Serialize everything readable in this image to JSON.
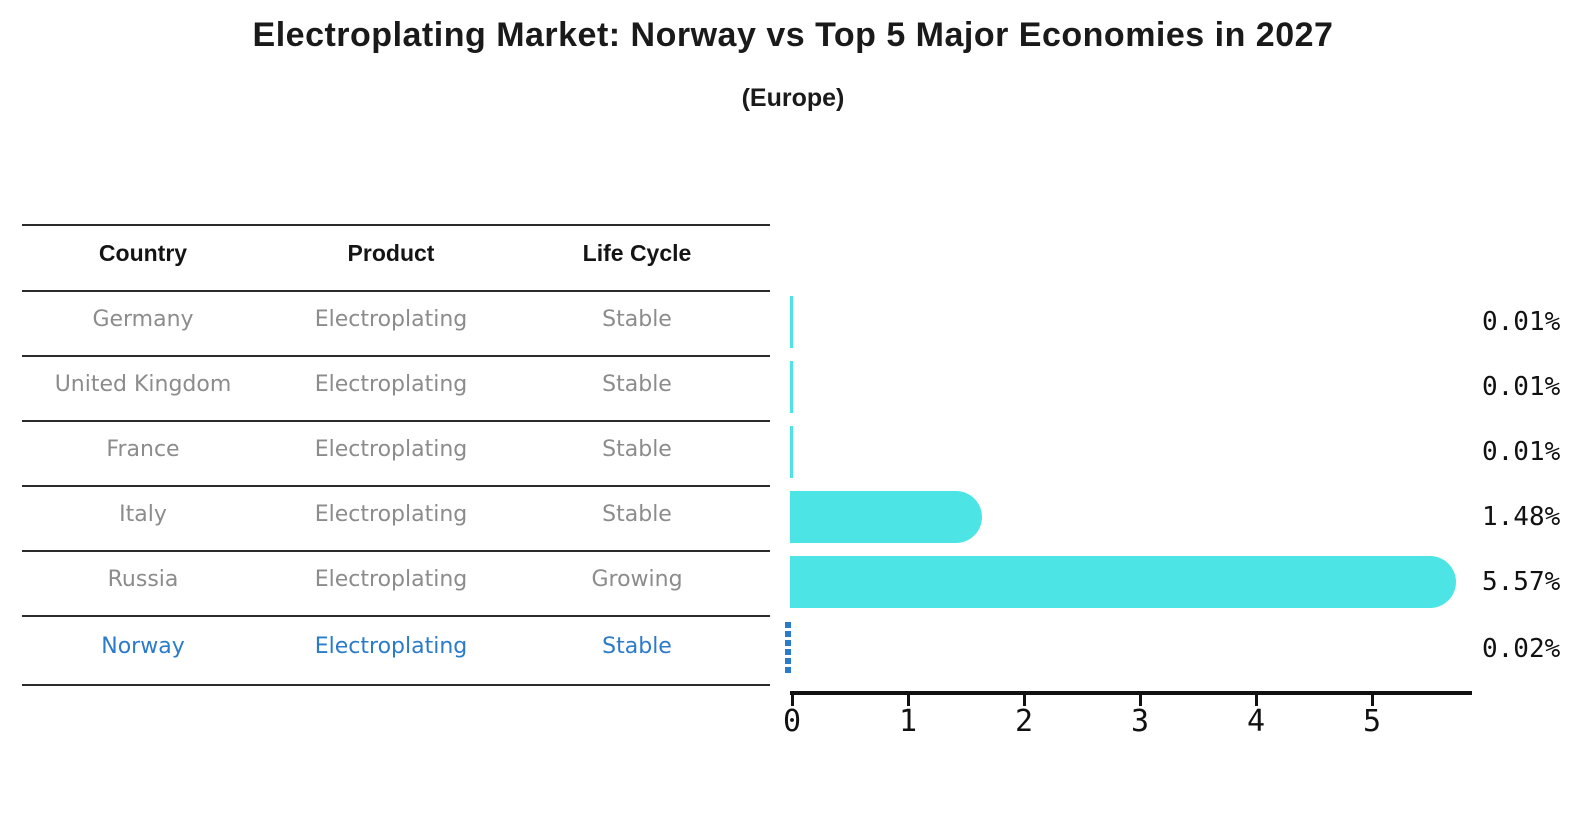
{
  "title": "Electroplating Market: Norway vs Top 5 Major Economies in 2027",
  "subtitle": "(Europe)",
  "table": {
    "headers": [
      "Country",
      "Product",
      "Life Cycle"
    ],
    "rows": [
      {
        "country": "Germany",
        "product": "Electroplating",
        "life_cycle": "Stable",
        "highlight": false
      },
      {
        "country": "United Kingdom",
        "product": "Electroplating",
        "life_cycle": "Stable",
        "highlight": false
      },
      {
        "country": "France",
        "product": "Electroplating",
        "life_cycle": "Stable",
        "highlight": false
      },
      {
        "country": "Italy",
        "product": "Electroplating",
        "life_cycle": "Stable",
        "highlight": false
      },
      {
        "country": "Russia",
        "product": "Electroplating",
        "life_cycle": "Growing",
        "highlight": false
      },
      {
        "country": "Norway",
        "product": "Electroplating",
        "life_cycle": "Stable",
        "highlight": true
      }
    ]
  },
  "chart_data": {
    "type": "bar",
    "orientation": "horizontal",
    "title": "Electroplating Market: Norway vs Top 5 Major Economies in 2027",
    "subtitle": "(Europe)",
    "categories": [
      "Germany",
      "United Kingdom",
      "France",
      "Italy",
      "Russia",
      "Norway"
    ],
    "values": [
      0.01,
      0.01,
      0.01,
      1.48,
      5.57,
      0.02
    ],
    "value_labels": [
      "0.01%",
      "0.01%",
      "0.01%",
      "1.48%",
      "5.57%",
      "0.02%"
    ],
    "x_ticks": [
      "0",
      "1",
      "2",
      "3",
      "4",
      "5"
    ],
    "xlim": [
      0,
      5.84
    ],
    "grid": false,
    "legend": false,
    "bar_color": "#4ce4e4",
    "highlight_color": "#2b7bcb",
    "highlight_index": 5,
    "highlight_style": "dashed"
  }
}
